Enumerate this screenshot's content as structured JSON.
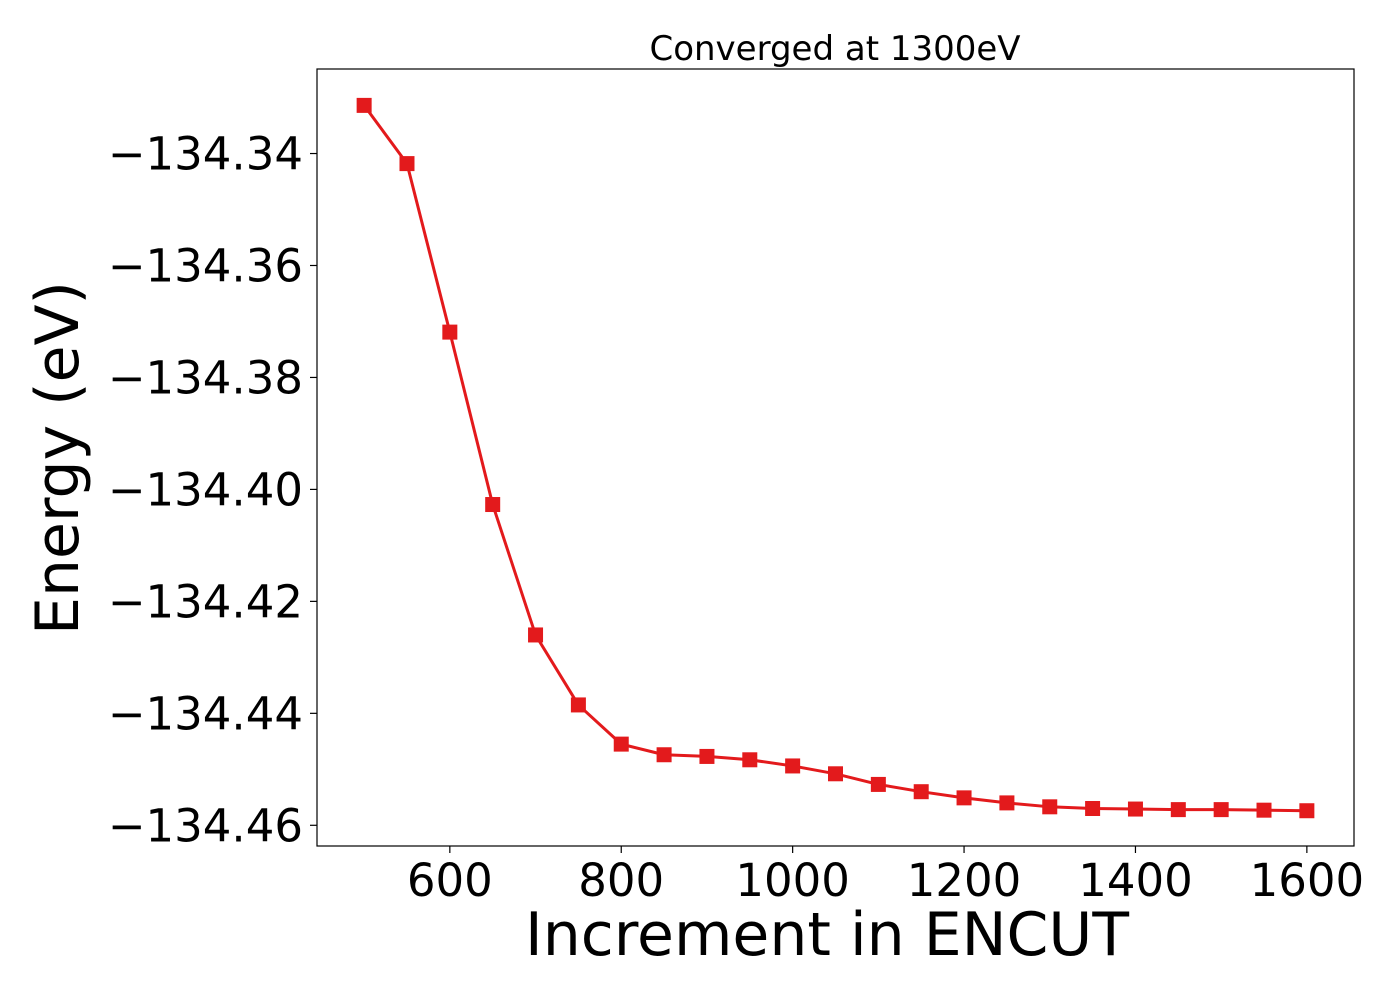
{
  "chart_data": {
    "type": "line",
    "title": "Converged at 1300eV",
    "xlabel": "Increment in ENCUT",
    "ylabel": "Energy (eV)",
    "xlim": [
      445,
      1655
    ],
    "ylim": [
      -134.4637,
      -134.3249
    ],
    "xticks": [
      600,
      800,
      1000,
      1200,
      1400,
      1600
    ],
    "xtick_labels": [
      "600",
      "800",
      "1000",
      "1200",
      "1400",
      "1600"
    ],
    "yticks": [
      -134.34,
      -134.36,
      -134.38,
      -134.4,
      -134.42,
      -134.44,
      -134.46
    ],
    "ytick_labels": [
      "−134.34",
      "−134.36",
      "−134.38",
      "−134.40",
      "−134.42",
      "−134.44",
      "−134.46"
    ],
    "grid": false,
    "color": "#e31a1c",
    "marker": "square",
    "series": [
      {
        "x": [
          500,
          550,
          600,
          650,
          700,
          750,
          800,
          850,
          900,
          950,
          1000,
          1050,
          1100,
          1150,
          1200,
          1250,
          1300,
          1350,
          1400,
          1450,
          1500,
          1550,
          1600
        ],
        "y": [
          -134.3314,
          -134.3418,
          -134.3719,
          -134.4027,
          -134.426,
          -134.4385,
          -134.4455,
          -134.4474,
          -134.4477,
          -134.4483,
          -134.4494,
          -134.4508,
          -134.4527,
          -134.454,
          -134.4551,
          -134.456,
          -134.4567,
          -134.457,
          -134.4571,
          -134.4572,
          -134.4572,
          -134.4573,
          -134.4574
        ]
      }
    ]
  }
}
